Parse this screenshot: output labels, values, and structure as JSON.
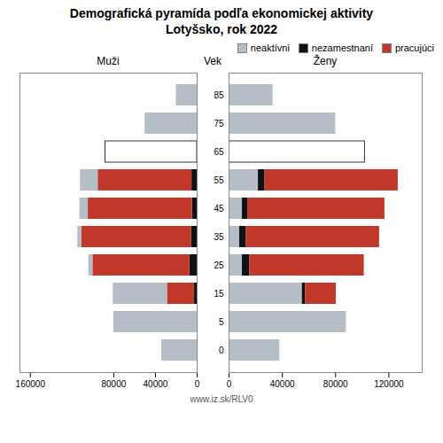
{
  "title": "Demografická pyramída podľa ekonomickej aktivity",
  "subtitle": "Lotyšsko, rok 2022",
  "annotations": [
    "www.iz.sk/RLV0"
  ],
  "chart_data": [
    {
      "type": "bar",
      "title": "Muži",
      "orientation": "horizontal",
      "stacked": true,
      "grid": false,
      "tick_labels": "x",
      "categories": [
        "85",
        "75",
        "65",
        "55",
        "45",
        "35",
        "25",
        "15",
        "5",
        "0"
      ],
      "xlim": [
        170000,
        0
      ],
      "xticks": [
        160000,
        80000,
        40000,
        0
      ],
      "series": [
        {
          "name": "nezamestnaní",
          "color": "#111111",
          "values": [
            0,
            0,
            0,
            5000,
            4500,
            5500,
            7000,
            2500,
            0,
            0
          ]
        },
        {
          "name": "pracujúci",
          "color": "#c0392b",
          "values": [
            0,
            0,
            0,
            90000,
            100000,
            105000,
            93000,
            26000,
            0,
            0
          ]
        },
        {
          "name": "neaktívni",
          "color": "#b5bec6",
          "colors": [
            "#b5bec6",
            "#b5bec6",
            "#ffffff",
            "#b5bec6",
            "#b5bec6",
            "#b5bec6",
            "#b5bec6",
            "#b5bec6",
            "#b5bec6",
            "#b5bec6"
          ],
          "values": [
            20000,
            50000,
            88000,
            17000,
            8000,
            4000,
            4000,
            52000,
            80000,
            34000
          ]
        }
      ]
    },
    {
      "type": "bar",
      "title": "Ženy",
      "ylabel": "Vek",
      "orientation": "horizontal",
      "stacked": true,
      "grid": false,
      "legend": "upper right",
      "categories": [
        "85",
        "75",
        "65",
        "55",
        "45",
        "35",
        "25",
        "15",
        "5",
        "0"
      ],
      "xlim": [
        0,
        145000
      ],
      "xticks": [
        0,
        40000,
        80000,
        120000
      ],
      "series": [
        {
          "name": "neaktívni",
          "color": "#b5bec6",
          "colors": [
            "#b5bec6",
            "#b5bec6",
            "#ffffff",
            "#b5bec6",
            "#b5bec6",
            "#b5bec6",
            "#b5bec6",
            "#b5bec6",
            "#b5bec6",
            "#b5bec6"
          ],
          "values": [
            33000,
            80000,
            102000,
            22000,
            10000,
            8000,
            10000,
            55000,
            88000,
            38000
          ]
        },
        {
          "name": "nezamestnaní",
          "color": "#111111",
          "values": [
            0,
            0,
            0,
            5000,
            4000,
            5000,
            5500,
            2500,
            0,
            0
          ]
        },
        {
          "name": "pracujúci",
          "color": "#c0392b",
          "values": [
            0,
            0,
            0,
            100000,
            103000,
            100000,
            86000,
            23000,
            0,
            0
          ]
        }
      ]
    }
  ]
}
